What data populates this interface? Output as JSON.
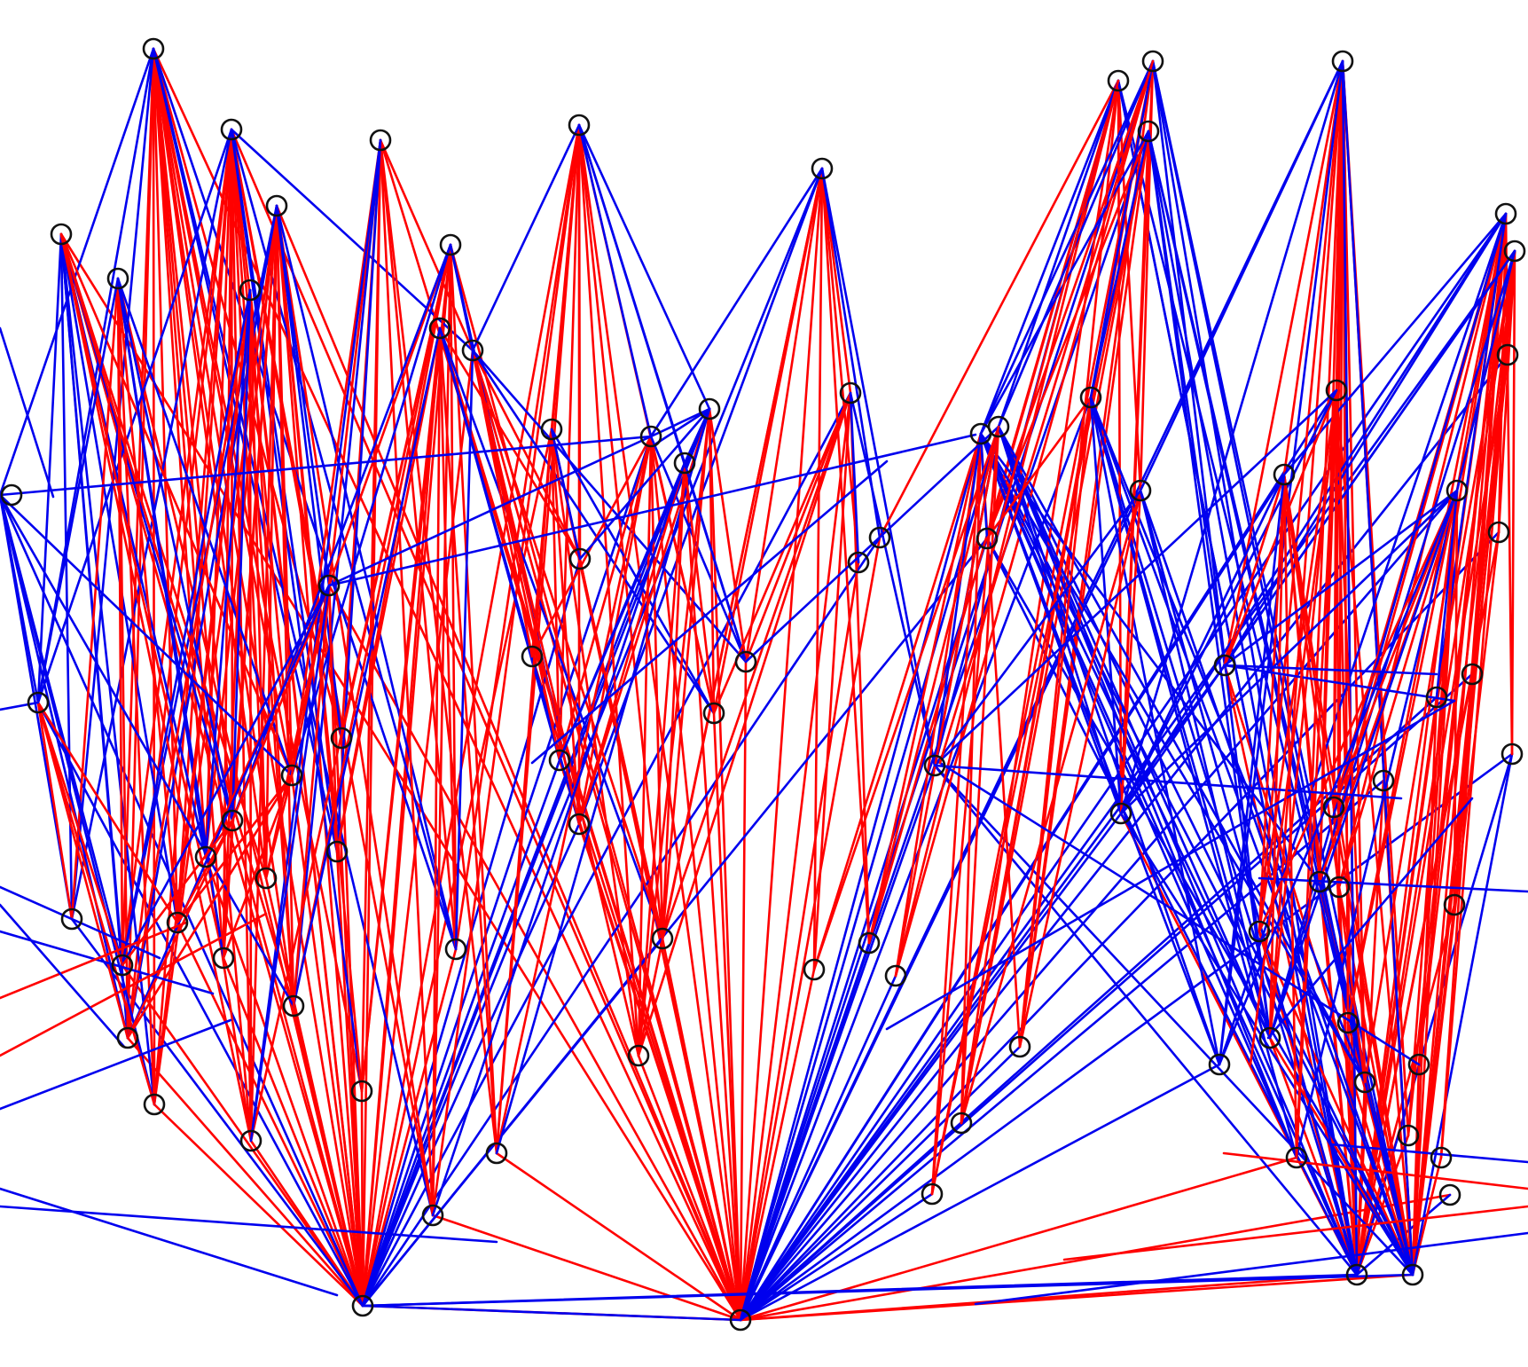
{
  "diagram": {
    "colors": {
      "background": "#ffffff",
      "edge_red": "#ff0000",
      "edge_blue": "#0000ee",
      "node_stroke": "#111111"
    },
    "node_shape": "hollow-circle",
    "node_count": 95,
    "edge_colors": [
      "red",
      "blue"
    ]
  }
}
